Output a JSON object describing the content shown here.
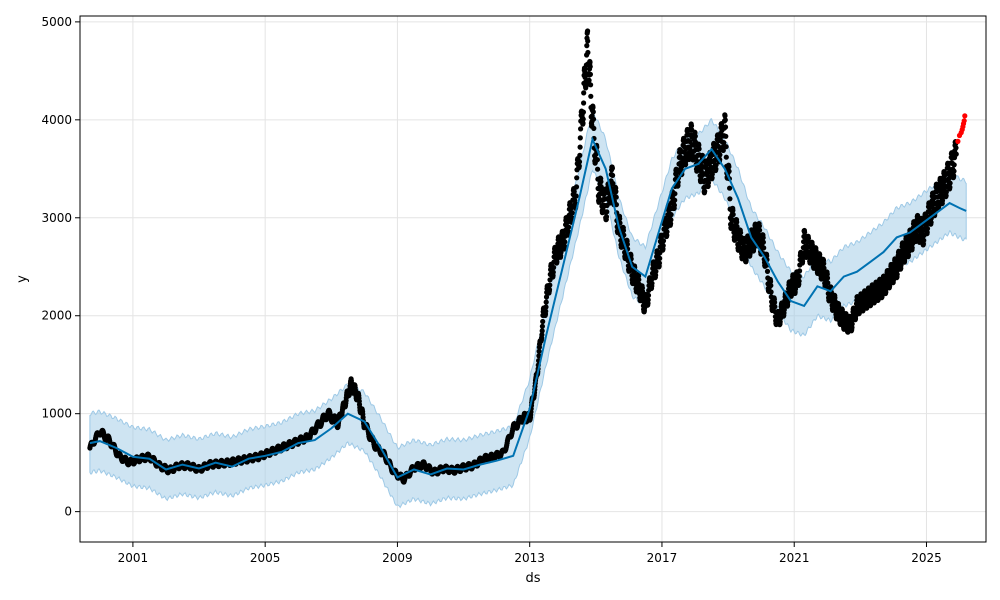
{
  "chart_data": {
    "type": "scatter",
    "xlabel": "ds",
    "ylabel": "y",
    "xlim": [
      1999.4,
      2026.8
    ],
    "ylim": [
      -310,
      5060
    ],
    "grid": true,
    "x_ticks": [
      {
        "value": 2001,
        "label": "2001"
      },
      {
        "value": 2005,
        "label": "2005"
      },
      {
        "value": 2009,
        "label": "2009"
      },
      {
        "value": 2013,
        "label": "2013"
      },
      {
        "value": 2017,
        "label": "2017"
      },
      {
        "value": 2021,
        "label": "2021"
      },
      {
        "value": 2025,
        "label": "2025"
      }
    ],
    "y_ticks": [
      {
        "value": 0,
        "label": "0"
      },
      {
        "value": 1000,
        "label": "1000"
      },
      {
        "value": 2000,
        "label": "2000"
      },
      {
        "value": 3000,
        "label": "3000"
      },
      {
        "value": 4000,
        "label": "4000"
      },
      {
        "value": 5000,
        "label": "5000"
      }
    ],
    "colors": {
      "observed": "#000000",
      "forecast_line": "#0072B2",
      "uncertainty_band": "#9ec9e6",
      "highlight": "#ff0000",
      "grid": "#e4e4e4"
    },
    "series": [
      {
        "role": "observed",
        "x": [
          1999.7,
          2000.0,
          2000.3,
          2000.6,
          2000.9,
          2001.2,
          2001.5,
          2001.8,
          2002.1,
          2002.4,
          2002.7,
          2003.0,
          2003.3,
          2003.6,
          2003.9,
          2004.2,
          2004.5,
          2004.8,
          2005.1,
          2005.4,
          2005.7,
          2006.0,
          2006.3,
          2006.6,
          2006.9,
          2007.2,
          2007.4,
          2007.6,
          2007.8,
          2008.0,
          2008.3,
          2008.6,
          2008.9,
          2009.2,
          2009.5,
          2009.8,
          2010.1,
          2010.4,
          2010.7,
          2011.0,
          2011.3,
          2011.6,
          2011.9,
          2012.2,
          2012.5,
          2012.8,
          2013.0,
          2013.2,
          2013.4,
          2013.6,
          2013.8,
          2014.0,
          2014.2,
          2014.4,
          2014.6,
          2014.75,
          2014.9,
          2015.1,
          2015.3,
          2015.5,
          2015.7,
          2015.9,
          2016.1,
          2016.3,
          2016.5,
          2016.7,
          2016.9,
          2017.1,
          2017.3,
          2017.5,
          2017.7,
          2017.9,
          2018.1,
          2018.3,
          2018.5,
          2018.7,
          2018.9,
          2019.1,
          2019.3,
          2019.5,
          2019.7,
          2019.9,
          2020.1,
          2020.3,
          2020.5,
          2020.7,
          2020.9,
          2021.1,
          2021.3,
          2021.5,
          2021.7,
          2021.9,
          2022.1,
          2022.3,
          2022.5,
          2022.7,
          2022.9,
          2023.1,
          2023.3,
          2023.5,
          2023.7,
          2023.9,
          2024.1,
          2024.3,
          2024.5,
          2024.7,
          2024.9,
          2025.1,
          2025.3,
          2025.5,
          2025.7,
          2025.9
        ],
        "y": [
          650,
          820,
          720,
          560,
          500,
          540,
          560,
          470,
          420,
          470,
          470,
          430,
          480,
          490,
          500,
          520,
          540,
          560,
          600,
          640,
          680,
          720,
          760,
          880,
          1000,
          900,
          1100,
          1300,
          1180,
          900,
          680,
          580,
          400,
          330,
          450,
          480,
          400,
          440,
          420,
          450,
          470,
          540,
          560,
          600,
          850,
          960,
          960,
          1350,
          1950,
          2350,
          2650,
          2750,
          3000,
          3250,
          4100,
          4750,
          4000,
          3300,
          3100,
          3400,
          2900,
          2700,
          2450,
          2300,
          2100,
          2400,
          2600,
          2900,
          3100,
          3500,
          3700,
          3800,
          3600,
          3400,
          3550,
          3700,
          3900,
          3000,
          2800,
          2650,
          2750,
          2850,
          2650,
          2200,
          1950,
          2100,
          2300,
          2350,
          2750,
          2650,
          2550,
          2450,
          2200,
          2050,
          1950,
          1900,
          2100,
          2150,
          2200,
          2250,
          2300,
          2400,
          2500,
          2650,
          2750,
          2900,
          2850,
          3050,
          3200,
          3300,
          3450,
          3650
        ],
        "highlight_x": [
          2025.95,
          2026.0,
          2026.05,
          2026.08,
          2026.1,
          2026.12,
          2026.14,
          2026.16
        ],
        "highlight_y": [
          3780,
          3840,
          3870,
          3900,
          3930,
          3960,
          3990,
          4040
        ]
      },
      {
        "role": "forecast",
        "x": [
          1999.7,
          2000.0,
          2000.5,
          2001.0,
          2001.5,
          2002.0,
          2002.5,
          2003.0,
          2003.5,
          2004.0,
          2004.5,
          2005.0,
          2005.5,
          2006.0,
          2006.5,
          2007.0,
          2007.5,
          2008.0,
          2008.5,
          2009.0,
          2009.5,
          2010.0,
          2010.5,
          2011.0,
          2011.5,
          2012.0,
          2012.5,
          2013.0,
          2013.5,
          2014.0,
          2014.5,
          2014.9,
          2015.3,
          2015.7,
          2016.1,
          2016.5,
          2016.9,
          2017.3,
          2017.7,
          2018.1,
          2018.5,
          2018.9,
          2019.3,
          2019.7,
          2020.1,
          2020.5,
          2020.9,
          2021.3,
          2021.7,
          2022.1,
          2022.5,
          2022.9,
          2023.3,
          2023.7,
          2024.1,
          2024.5,
          2024.9,
          2025.3,
          2025.7,
          2026.0,
          2026.2
        ],
        "y": [
          700,
          720,
          650,
          560,
          540,
          430,
          480,
          440,
          500,
          460,
          540,
          570,
          610,
          700,
          730,
          850,
          1000,
          920,
          650,
          350,
          430,
          380,
          440,
          430,
          480,
          520,
          570,
          1050,
          1800,
          2500,
          3200,
          3800,
          3500,
          2900,
          2500,
          2400,
          2850,
          3300,
          3500,
          3550,
          3700,
          3500,
          3200,
          2800,
          2600,
          2350,
          2150,
          2100,
          2300,
          2250,
          2400,
          2450,
          2550,
          2650,
          2800,
          2850,
          2950,
          3050,
          3150,
          3100,
          3070
        ]
      }
    ]
  }
}
